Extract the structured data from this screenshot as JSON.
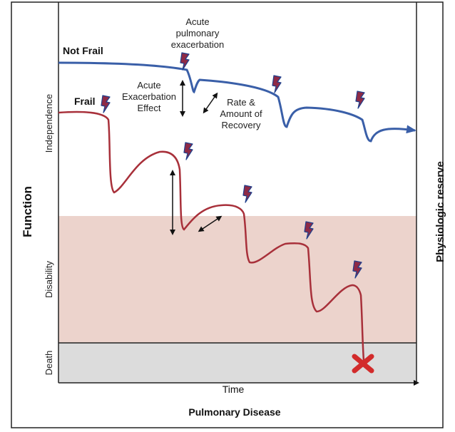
{
  "labels": {
    "top_annotation": [
      "Acute",
      "pulmonary",
      "exacerbation"
    ],
    "not_frail": "Not Frail",
    "frail": "Frail",
    "exacerbation_effect": [
      "Acute",
      "Exacerbation",
      "Effect"
    ],
    "recovery": [
      "Rate &",
      "Amount of",
      "Recovery"
    ],
    "y_independence": "Independence",
    "y_disability": "Disability",
    "y_death": "Death",
    "y_function": "Function",
    "right_axis": "Physiologic reserve",
    "x_time": "Time",
    "x_disease": "Pulmonary Disease"
  },
  "colors": {
    "not_frail_curve": "#3a5fa8",
    "frail_curve": "#a8303a",
    "disability_band": "#ecd3cc",
    "death_band": "#dcdcdc",
    "bolt_fill": "#8e2a46",
    "bolt_stroke": "#1f3f8c",
    "death_marker": "#d22b2b"
  },
  "icons": {
    "exacerbation": "lightning-bolt-icon",
    "death": "x-mark-icon"
  }
}
